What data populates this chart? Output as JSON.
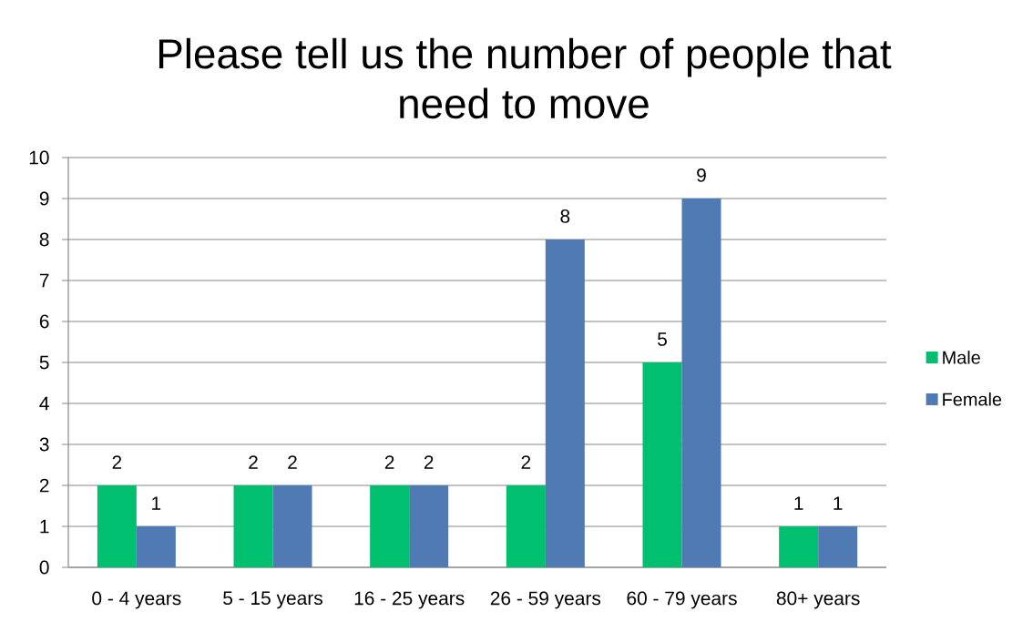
{
  "chart_data": {
    "type": "bar",
    "title": "Please tell us the number of people that need to move",
    "categories": [
      "0 - 4 years",
      "5 - 15 years",
      "16 - 25 years",
      "26 - 59 years",
      "60 - 79 years",
      "80+ years"
    ],
    "series": [
      {
        "name": "Male",
        "color": "#00bf6f",
        "values": [
          2,
          2,
          2,
          2,
          5,
          1
        ]
      },
      {
        "name": "Female",
        "color": "#4f7ab4",
        "values": [
          1,
          2,
          2,
          8,
          9,
          1
        ]
      }
    ],
    "ylim": [
      0,
      10
    ],
    "yticks": [
      0,
      1,
      2,
      3,
      4,
      5,
      6,
      7,
      8,
      9,
      10
    ],
    "grid": "y",
    "legend": "right",
    "data_labels": true
  }
}
